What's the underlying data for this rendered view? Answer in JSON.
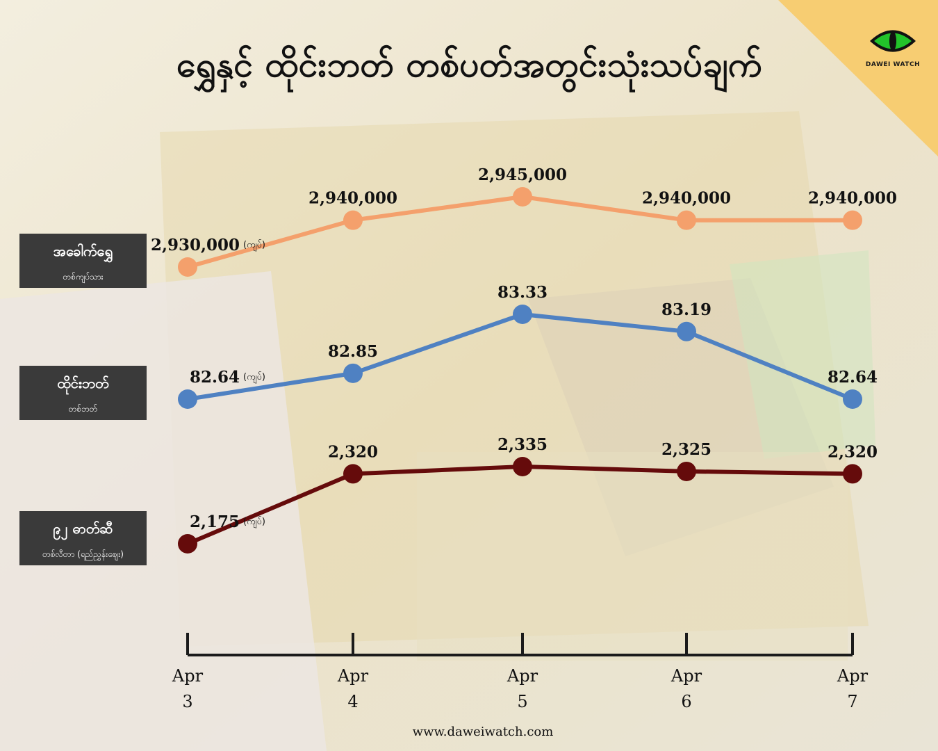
{
  "title": "ရွှေနှင့် ထိုင်းဘတ် တစ်ပတ်အတွင်းသုံးသပ်ချက်",
  "brand": {
    "logo_text": "DAWEI WATCH",
    "website": "www.daweiwatch.com"
  },
  "colors": {
    "gold": "#f4a06c",
    "baht": "#4f81c2",
    "fuel": "#650b0b",
    "label_bg": "#3a3a3a",
    "corner": "#f7cd72"
  },
  "labels": [
    {
      "main": "အခေါက်ရွှေ",
      "sub": "တစ်ကျပ်သား"
    },
    {
      "main": "ထိုင်းဘတ်",
      "sub": "တစ်ဘတ်"
    },
    {
      "main": "၉၂ ဓာတ်ဆီ",
      "sub": "တစ်လီတာ (ရည်ညွှန်းဈေး)"
    }
  ],
  "chart_data": {
    "type": "line",
    "categories": [
      [
        "Apr",
        "3"
      ],
      [
        "Apr",
        "4"
      ],
      [
        "Apr",
        "5"
      ],
      [
        "Apr",
        "6"
      ],
      [
        "Apr",
        "7"
      ]
    ],
    "unit_label": "(ကျပ်)",
    "series": [
      {
        "name": "အခေါက်ရွှေ",
        "values": [
          2930000,
          2940000,
          2945000,
          2940000,
          2940000
        ],
        "value_labels": [
          "2,930,000",
          "2,940,000",
          "2,945,000",
          "2,940,000",
          "2,940,000"
        ]
      },
      {
        "name": "ထိုင်းဘတ်",
        "values": [
          82.64,
          82.85,
          83.33,
          83.19,
          82.64
        ],
        "value_labels": [
          "82.64",
          "82.85",
          "83.33",
          "83.19",
          "82.64"
        ]
      },
      {
        "name": "၉၂ ဓာတ်ဆီ",
        "values": [
          2175,
          2320,
          2335,
          2325,
          2320
        ],
        "value_labels": [
          "2,175",
          "2,320",
          "2,335",
          "2,325",
          "2,320"
        ]
      }
    ]
  }
}
